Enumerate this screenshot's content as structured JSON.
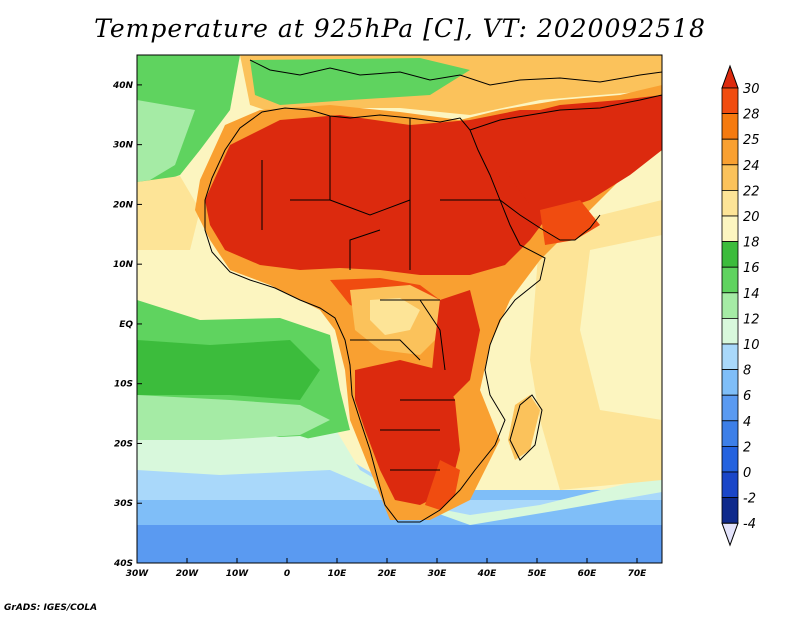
{
  "title": "Temperature at 925hPa [C], VT: 2020092518",
  "footer": "GrADS: IGES/COLA",
  "map": {
    "lon_range": [
      -30,
      75
    ],
    "lat_range": [
      -40,
      45
    ],
    "lon_ticks": [
      {
        "value": -30,
        "label": "30W"
      },
      {
        "value": -20,
        "label": "20W"
      },
      {
        "value": -10,
        "label": "10W"
      },
      {
        "value": 0,
        "label": "0"
      },
      {
        "value": 10,
        "label": "10E"
      },
      {
        "value": 20,
        "label": "20E"
      },
      {
        "value": 30,
        "label": "30E"
      },
      {
        "value": 40,
        "label": "40E"
      },
      {
        "value": 50,
        "label": "50E"
      },
      {
        "value": 60,
        "label": "60E"
      },
      {
        "value": 70,
        "label": "70E"
      }
    ],
    "lat_ticks": [
      {
        "value": 40,
        "label": "40N"
      },
      {
        "value": 30,
        "label": "30N"
      },
      {
        "value": 20,
        "label": "20N"
      },
      {
        "value": 10,
        "label": "10N"
      },
      {
        "value": 0,
        "label": "EQ"
      },
      {
        "value": -10,
        "label": "10S"
      },
      {
        "value": -20,
        "label": "20S"
      },
      {
        "value": -30,
        "label": "30S"
      },
      {
        "value": -40,
        "label": "40S"
      }
    ]
  },
  "colorbar": {
    "levels": [
      30,
      28,
      25,
      24,
      22,
      20,
      18,
      16,
      14,
      12,
      10,
      8,
      6,
      4,
      2,
      0,
      -2,
      -4
    ],
    "colors": [
      "#dc2a0e",
      "#f04c10",
      "#f57a0f",
      "#f9a031",
      "#fbc25b",
      "#fde497",
      "#fcf5c0",
      "#3cbc3c",
      "#5fd35f",
      "#a5eba5",
      "#d8f8dc",
      "#a9d8fa",
      "#7fbef8",
      "#5a9af1",
      "#3d7fe8",
      "#2462df",
      "#1a46c8",
      "#0f2a8c",
      "#141470",
      "#e3e3fb"
    ]
  }
}
